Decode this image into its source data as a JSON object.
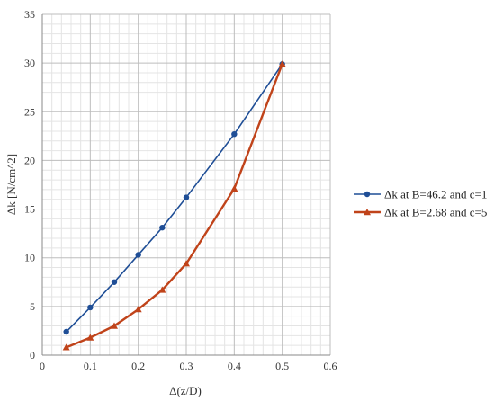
{
  "chart_data": {
    "type": "line",
    "title": "",
    "xlabel": "Δ(z/D)",
    "ylabel": "Δk [N/cm^2]",
    "xlim": [
      0,
      0.6
    ],
    "ylim": [
      0,
      35
    ],
    "xticks": [
      0,
      0.1,
      0.2,
      0.3,
      0.4,
      0.5,
      0.6
    ],
    "yticks": [
      0,
      5,
      10,
      15,
      20,
      25,
      30,
      35
    ],
    "xtick_labels": [
      "0",
      "0.1",
      "0.2",
      "0.3",
      "0.4",
      "0.5",
      "0.6"
    ],
    "ytick_labels": [
      "0",
      "5",
      "10",
      "15",
      "20",
      "25",
      "30",
      "35"
    ],
    "grid": true,
    "minor_grid": true,
    "legend_position": "right",
    "series": [
      {
        "name": "Δk at B=46.2 and c=1",
        "color": "#1f4e96",
        "marker": "circle",
        "x": [
          0.05,
          0.1,
          0.15,
          0.2,
          0.25,
          0.3,
          0.4,
          0.5
        ],
        "y": [
          2.4,
          4.9,
          7.5,
          10.3,
          13.1,
          16.2,
          22.7,
          29.9
        ]
      },
      {
        "name": "Δk at B=2.68 and c=5",
        "color": "#c0431a",
        "marker": "triangle",
        "x": [
          0.05,
          0.1,
          0.15,
          0.2,
          0.25,
          0.3,
          0.4,
          0.5
        ],
        "y": [
          0.8,
          1.8,
          3.0,
          4.7,
          6.7,
          9.4,
          17.1,
          29.9
        ]
      }
    ]
  }
}
